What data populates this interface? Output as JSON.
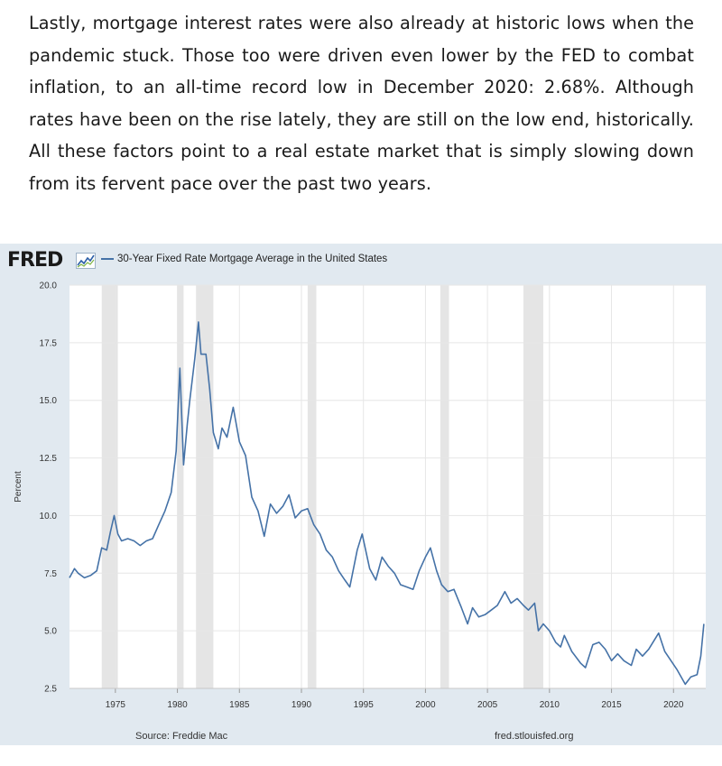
{
  "article": {
    "paragraph": "Lastly, mortgage interest rates were also already at historic lows when the pandemic stuck. Those too were driven even lower by the FED to combat inflation, to an all-time record low in December 2020: 2.68%. Although rates have been on the rise lately, they are still on the low end, historically. All these factors point to a real estate market that is simply slowing down from its fervent pace over the past two years."
  },
  "figure": {
    "logo": "FRED",
    "source_left": "Source: Freddie Mac",
    "source_right": "fred.stlouisfed.org"
  },
  "colors": {
    "series": "#4572a7",
    "panel_background": "#e1e9f0",
    "plot_background": "#ffffff",
    "recession_band": "#e5e5e5",
    "grid": "#e6e6e6"
  },
  "chart_data": {
    "type": "line",
    "title": "",
    "xlabel": "",
    "ylabel": "Percent",
    "legend": "top-left",
    "grid": true,
    "xlim": [
      1971.3,
      2022.6
    ],
    "ylim": [
      2.5,
      20.0
    ],
    "x_ticks": [
      1975,
      1980,
      1985,
      1990,
      1995,
      2000,
      2005,
      2010,
      2015,
      2020
    ],
    "y_ticks": [
      2.5,
      5.0,
      7.5,
      10.0,
      12.5,
      15.0,
      17.5,
      20.0
    ],
    "y_tick_labels": [
      "2.5",
      "5.0",
      "7.5",
      "10.0",
      "12.5",
      "15.0",
      "17.5",
      "20.0"
    ],
    "recessions": [
      [
        1973.9,
        1975.2
      ],
      [
        1980.0,
        1980.5
      ],
      [
        1981.5,
        1982.9
      ],
      [
        1990.5,
        1991.2
      ],
      [
        2001.2,
        2001.9
      ],
      [
        2007.9,
        2009.5
      ]
    ],
    "series": [
      {
        "name": "30-Year Fixed Rate Mortgage Average in the United States",
        "points": [
          [
            1971.3,
            7.3
          ],
          [
            1971.7,
            7.7
          ],
          [
            1972.0,
            7.5
          ],
          [
            1972.5,
            7.3
          ],
          [
            1973.0,
            7.4
          ],
          [
            1973.5,
            7.6
          ],
          [
            1973.9,
            8.6
          ],
          [
            1974.3,
            8.5
          ],
          [
            1974.6,
            9.3
          ],
          [
            1974.9,
            10.0
          ],
          [
            1975.2,
            9.2
          ],
          [
            1975.5,
            8.9
          ],
          [
            1976.0,
            9.0
          ],
          [
            1976.5,
            8.9
          ],
          [
            1977.0,
            8.7
          ],
          [
            1977.5,
            8.9
          ],
          [
            1978.0,
            9.0
          ],
          [
            1978.5,
            9.6
          ],
          [
            1979.0,
            10.2
          ],
          [
            1979.5,
            11.0
          ],
          [
            1979.9,
            12.8
          ],
          [
            1980.2,
            16.4
          ],
          [
            1980.5,
            12.2
          ],
          [
            1980.8,
            14.0
          ],
          [
            1981.0,
            15.0
          ],
          [
            1981.4,
            16.8
          ],
          [
            1981.7,
            18.4
          ],
          [
            1981.9,
            17.0
          ],
          [
            1982.3,
            17.0
          ],
          [
            1982.6,
            15.5
          ],
          [
            1982.9,
            13.6
          ],
          [
            1983.3,
            12.9
          ],
          [
            1983.6,
            13.8
          ],
          [
            1984.0,
            13.4
          ],
          [
            1984.5,
            14.7
          ],
          [
            1985.0,
            13.2
          ],
          [
            1985.5,
            12.6
          ],
          [
            1986.0,
            10.8
          ],
          [
            1986.5,
            10.2
          ],
          [
            1987.0,
            9.1
          ],
          [
            1987.5,
            10.5
          ],
          [
            1988.0,
            10.1
          ],
          [
            1988.5,
            10.4
          ],
          [
            1989.0,
            10.9
          ],
          [
            1989.5,
            9.9
          ],
          [
            1990.0,
            10.2
          ],
          [
            1990.5,
            10.3
          ],
          [
            1991.0,
            9.6
          ],
          [
            1991.5,
            9.2
          ],
          [
            1992.0,
            8.5
          ],
          [
            1992.5,
            8.2
          ],
          [
            1993.0,
            7.6
          ],
          [
            1993.5,
            7.2
          ],
          [
            1993.9,
            6.9
          ],
          [
            1994.5,
            8.5
          ],
          [
            1994.9,
            9.2
          ],
          [
            1995.5,
            7.7
          ],
          [
            1996.0,
            7.2
          ],
          [
            1996.5,
            8.2
          ],
          [
            1997.0,
            7.8
          ],
          [
            1997.5,
            7.5
          ],
          [
            1998.0,
            7.0
          ],
          [
            1998.5,
            6.9
          ],
          [
            1999.0,
            6.8
          ],
          [
            1999.5,
            7.6
          ],
          [
            2000.0,
            8.2
          ],
          [
            2000.4,
            8.6
          ],
          [
            2000.9,
            7.6
          ],
          [
            2001.3,
            7.0
          ],
          [
            2001.8,
            6.7
          ],
          [
            2002.3,
            6.8
          ],
          [
            2002.9,
            6.0
          ],
          [
            2003.4,
            5.3
          ],
          [
            2003.8,
            6.0
          ],
          [
            2004.3,
            5.6
          ],
          [
            2004.8,
            5.7
          ],
          [
            2005.3,
            5.9
          ],
          [
            2005.8,
            6.1
          ],
          [
            2006.4,
            6.7
          ],
          [
            2006.9,
            6.2
          ],
          [
            2007.4,
            6.4
          ],
          [
            2007.9,
            6.1
          ],
          [
            2008.3,
            5.9
          ],
          [
            2008.8,
            6.2
          ],
          [
            2009.1,
            5.0
          ],
          [
            2009.5,
            5.3
          ],
          [
            2010.0,
            5.0
          ],
          [
            2010.5,
            4.5
          ],
          [
            2010.9,
            4.3
          ],
          [
            2011.2,
            4.8
          ],
          [
            2011.8,
            4.1
          ],
          [
            2012.5,
            3.6
          ],
          [
            2012.9,
            3.4
          ],
          [
            2013.5,
            4.4
          ],
          [
            2014.0,
            4.5
          ],
          [
            2014.5,
            4.2
          ],
          [
            2015.0,
            3.7
          ],
          [
            2015.5,
            4.0
          ],
          [
            2016.0,
            3.7
          ],
          [
            2016.6,
            3.5
          ],
          [
            2017.0,
            4.2
          ],
          [
            2017.5,
            3.9
          ],
          [
            2018.0,
            4.2
          ],
          [
            2018.8,
            4.9
          ],
          [
            2019.3,
            4.1
          ],
          [
            2019.8,
            3.7
          ],
          [
            2020.3,
            3.3
          ],
          [
            2020.95,
            2.68
          ],
          [
            2021.4,
            3.0
          ],
          [
            2021.9,
            3.1
          ],
          [
            2022.2,
            3.9
          ],
          [
            2022.45,
            5.3
          ]
        ]
      }
    ]
  }
}
